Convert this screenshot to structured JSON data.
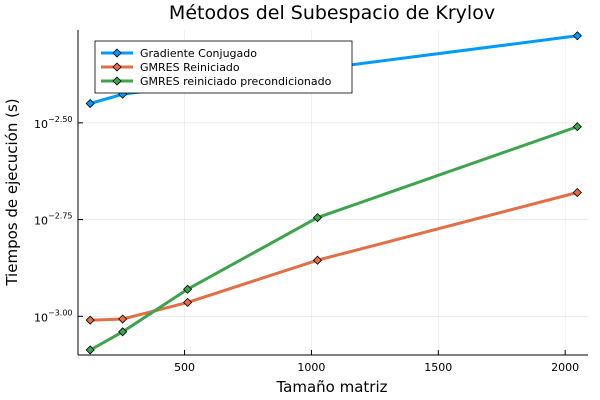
{
  "chart_data": {
    "type": "line",
    "title": "Métodos del Subespacio de Krylov",
    "xlabel": "Tamaño matriz",
    "ylabel": "Tiempos de ejecución (s)",
    "yscale": "log10",
    "xlim": [
      80,
      2090
    ],
    "ylim_log10": [
      -3.1,
      -2.26
    ],
    "xticks": [
      500,
      1000,
      1500,
      2000
    ],
    "yticks": [
      {
        "base": "10",
        "exp": "−3.00",
        "log10": -3.0
      },
      {
        "base": "10",
        "exp": "−2.75",
        "log10": -2.75
      },
      {
        "base": "10",
        "exp": "−2.50",
        "log10": -2.5
      }
    ],
    "grid": true,
    "legend_position": "top-left",
    "series": [
      {
        "name": "Gradiente Conjugado",
        "color": "#009AFA",
        "marker": "diamond",
        "x": [
          128,
          256,
          2048
        ],
        "y_log10": [
          -2.45,
          -2.426,
          -2.275
        ],
        "note_values": "approximate, read from log axis"
      },
      {
        "name": "GMRES Reiniciado",
        "color": "#E26F46",
        "marker": "diamond",
        "x": [
          128,
          256,
          512,
          1024,
          2048
        ],
        "y_log10": [
          -3.01,
          -3.007,
          -2.964,
          -2.855,
          -2.68
        ]
      },
      {
        "name": "GMRES reiniciado precondicionado",
        "color": "#3DA44D",
        "marker": "diamond",
        "x": [
          128,
          256,
          512,
          1024,
          2048
        ],
        "y_log10": [
          -3.087,
          -3.04,
          -2.93,
          -2.745,
          -2.51
        ]
      }
    ]
  }
}
